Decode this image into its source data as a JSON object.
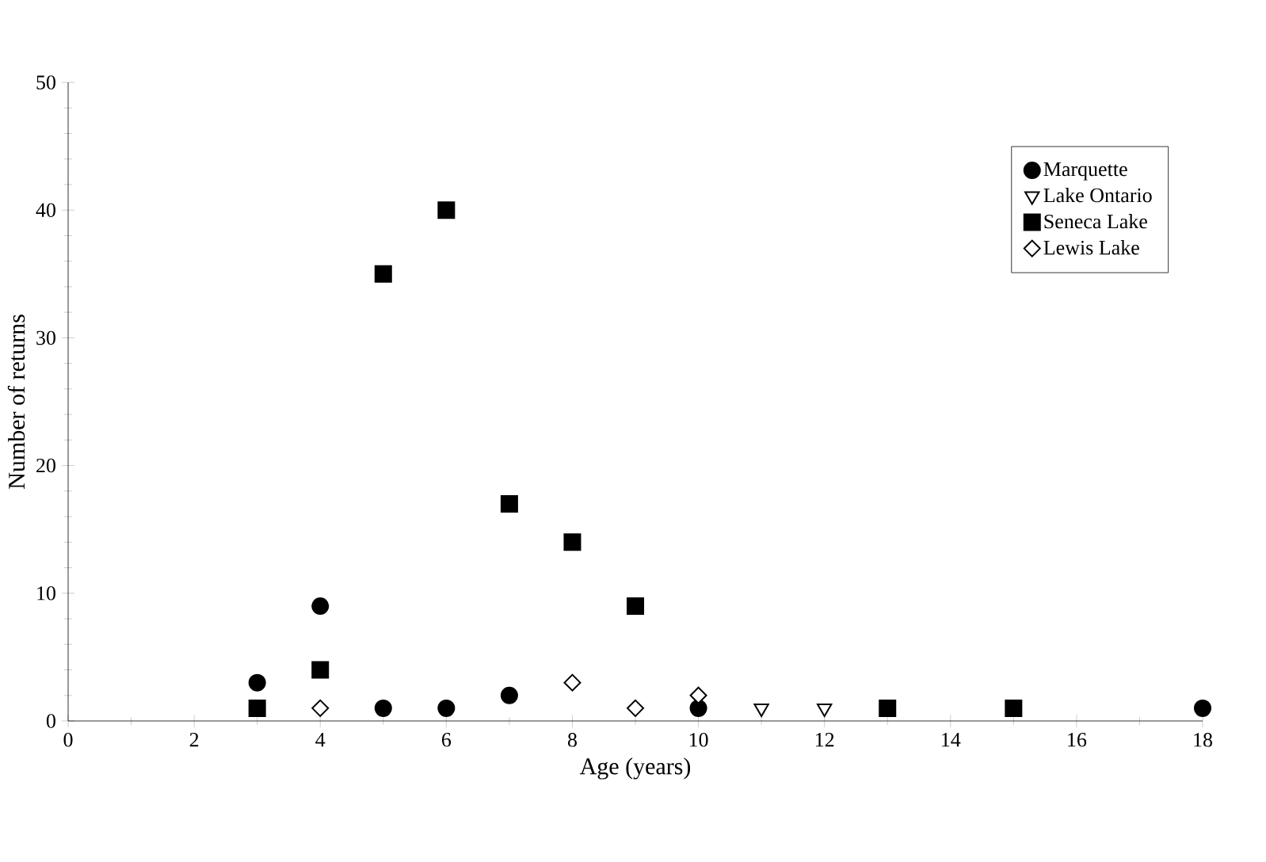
{
  "chart_data": {
    "type": "scatter",
    "xlabel": "Age (years)",
    "ylabel": "Number of returns",
    "xlim": [
      0,
      18
    ],
    "xticks": [
      0,
      2,
      4,
      6,
      8,
      10,
      12,
      14,
      16,
      18
    ],
    "ylim": [
      0,
      50
    ],
    "yticks": [
      0,
      10,
      20,
      30,
      40,
      50
    ],
    "legend": "top right",
    "grid": false,
    "series": [
      {
        "name": "Marquette",
        "color": "#000000",
        "marker": "circle",
        "x": [
          3,
          4,
          5,
          6,
          7,
          10,
          18
        ],
        "values": [
          3,
          9,
          1,
          1,
          2,
          1,
          1
        ]
      },
      {
        "name": "Lake Ontario",
        "color": "#000000",
        "marker": "triangle",
        "x": [
          11,
          12
        ],
        "values": [
          1,
          1
        ]
      },
      {
        "name": "Seneca Lake",
        "color": "#000000",
        "marker": "square",
        "x": [
          3,
          4,
          5,
          6,
          7,
          8,
          9,
          13,
          15
        ],
        "values": [
          1,
          4,
          35,
          40,
          17,
          14,
          9,
          1,
          1
        ]
      },
      {
        "name": "Lewis Lake",
        "color": "#000000",
        "marker": "diamond",
        "x": [
          4,
          8,
          9,
          10
        ],
        "values": [
          1,
          3,
          1,
          2
        ]
      }
    ]
  }
}
